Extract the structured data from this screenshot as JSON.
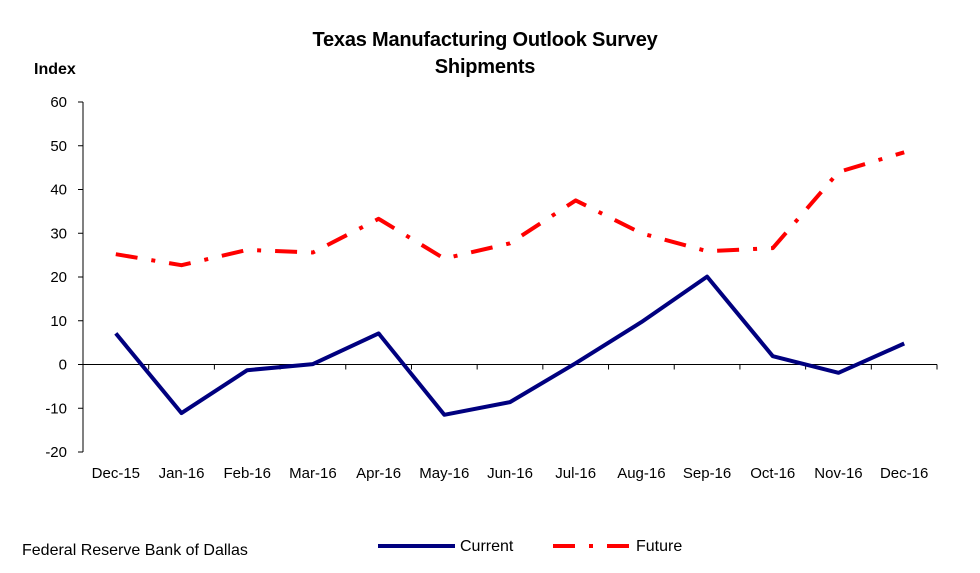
{
  "chart_data": {
    "type": "line",
    "title": "Texas Manufacturing Outlook Survey",
    "subtitle": "Shipments",
    "ylabel": "Index",
    "xlabel": "",
    "categories": [
      "Dec-15",
      "Jan-16",
      "Feb-16",
      "Mar-16",
      "Apr-16",
      "May-16",
      "Jun-16",
      "Jul-16",
      "Aug-16",
      "Sep-16",
      "Oct-16",
      "Nov-16",
      "Dec-16"
    ],
    "ylim": [
      -20,
      60
    ],
    "yticks": [
      -20,
      -10,
      0,
      10,
      20,
      30,
      40,
      50,
      60
    ],
    "grid": false,
    "legend_position": "bottom",
    "series": [
      {
        "name": "Current",
        "color": "#00007F",
        "style": "solid",
        "values": [
          7.1,
          -11.1,
          -1.3,
          0.1,
          7.1,
          -11.5,
          -8.6,
          0.3,
          9.7,
          20.1,
          1.9,
          -1.9,
          4.8
        ]
      },
      {
        "name": "Future",
        "color": "#FF0000",
        "style": "dash-dot",
        "values": [
          25.2,
          22.7,
          26.2,
          25.6,
          33.3,
          24.2,
          27.7,
          37.5,
          30.0,
          25.9,
          26.6,
          44.0,
          48.5
        ]
      }
    ]
  },
  "source": "Federal Reserve Bank of Dallas"
}
